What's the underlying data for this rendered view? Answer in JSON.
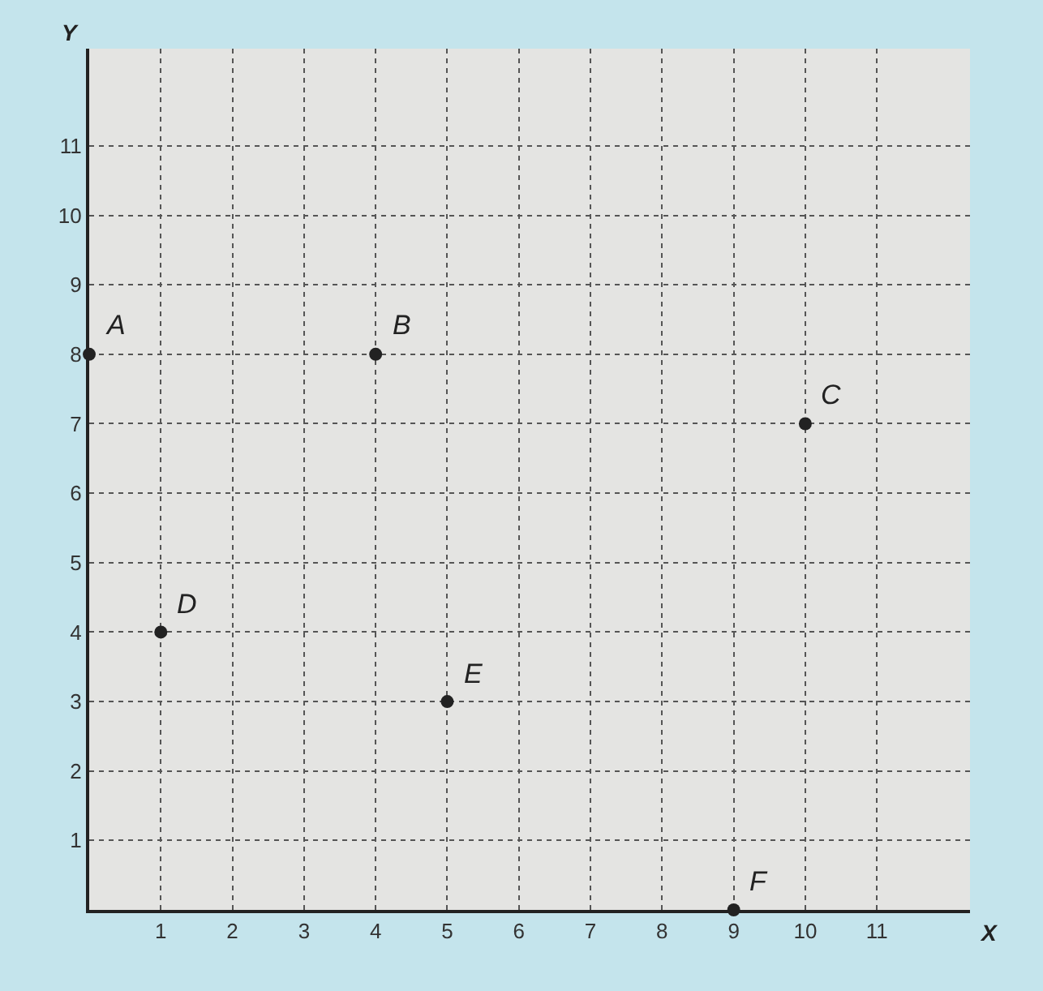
{
  "chart_data": {
    "type": "scatter",
    "xlabel": "X",
    "ylabel": "Y",
    "x": [
      0,
      4,
      10,
      1,
      5,
      9
    ],
    "series": [
      {
        "color": "#222222",
        "values": [
          8,
          8,
          7,
          4,
          3,
          0
        ]
      }
    ],
    "annotations": [
      {
        "text": "A",
        "x": 0,
        "y": 8
      },
      {
        "text": "B",
        "x": 4,
        "y": 8
      },
      {
        "text": "C",
        "x": 10,
        "y": 7
      },
      {
        "text": "D",
        "x": 1,
        "y": 4
      },
      {
        "text": "E",
        "x": 5,
        "y": 3
      },
      {
        "text": "F",
        "x": 9,
        "y": 0
      }
    ],
    "xlim": [
      0,
      12.3
    ],
    "ylim": [
      0,
      12.4
    ],
    "xticks": [
      1,
      2,
      3,
      4,
      5,
      6,
      7,
      8,
      9,
      10,
      11
    ],
    "yticks": [
      1,
      2,
      3,
      4,
      5,
      6,
      7,
      8,
      9,
      10,
      11
    ],
    "grid": true,
    "marker": "circle"
  }
}
